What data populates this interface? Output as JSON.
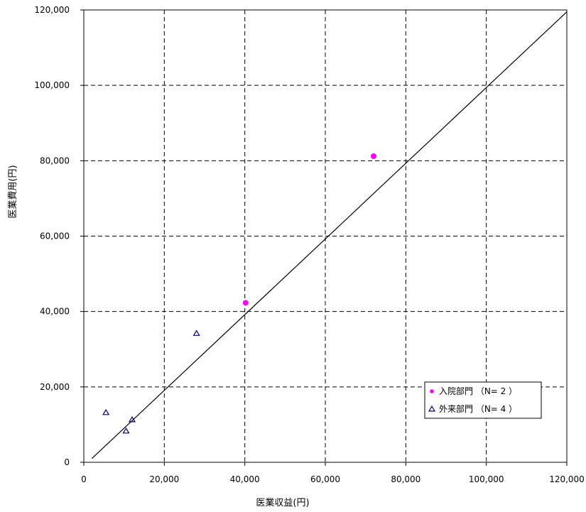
{
  "chart_data": {
    "type": "scatter",
    "xlabel": "医業収益(円)",
    "ylabel": "医業費用(円)",
    "xlim": [
      0,
      120000
    ],
    "ylim": [
      0,
      120000
    ],
    "x_ticks": [
      0,
      20000,
      40000,
      60000,
      80000,
      100000,
      120000
    ],
    "y_ticks": [
      0,
      20000,
      40000,
      60000,
      80000,
      100000,
      120000
    ],
    "x_tick_labels": [
      "0",
      "20,000",
      "40,000",
      "60,000",
      "80,000",
      "100,000",
      "120,000"
    ],
    "y_tick_labels": [
      "0",
      "20,000",
      "40,000",
      "60,000",
      "80,000",
      "100,000",
      "120,000"
    ],
    "grid": true,
    "legend_position": "bottom-right",
    "reference_line": {
      "from": [
        2000,
        1000
      ],
      "to": [
        120000,
        119500
      ]
    },
    "series": [
      {
        "name": "入院部門 （N= 2 ）",
        "marker": "circle",
        "color": "#ff00ff",
        "points": [
          [
            40200,
            42300
          ],
          [
            72000,
            81200
          ]
        ]
      },
      {
        "name": "外来部門 （N= 4 ）",
        "marker": "triangle",
        "color": "#000080",
        "points": [
          [
            5500,
            13200
          ],
          [
            10500,
            8300
          ],
          [
            12000,
            11300
          ],
          [
            28000,
            34200
          ]
        ]
      }
    ]
  }
}
